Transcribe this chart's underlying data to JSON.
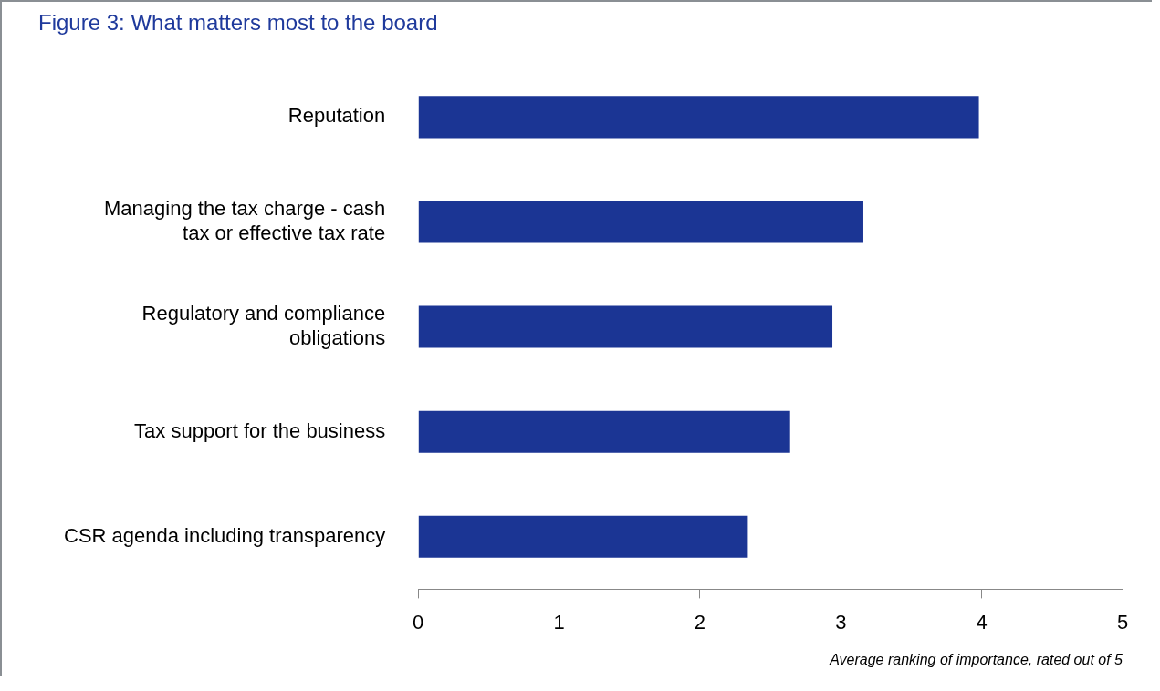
{
  "chart_data": {
    "type": "bar",
    "orientation": "horizontal",
    "title": "Figure 3: What matters most to the board",
    "xlabel": "Average ranking of importance, rated out of 5",
    "categories": [
      "Reputation",
      "Managing the tax charge - cash tax or effective tax rate",
      "Regulatory and compliance obligations",
      "Tax support for the business",
      "CSR agenda including transparency"
    ],
    "values": [
      3.98,
      3.16,
      2.94,
      2.64,
      2.34
    ],
    "color": "#1b3594",
    "xlim": [
      0,
      5
    ],
    "xticks": [
      0,
      1,
      2,
      3,
      4,
      5
    ],
    "grid": false,
    "legend": false
  }
}
